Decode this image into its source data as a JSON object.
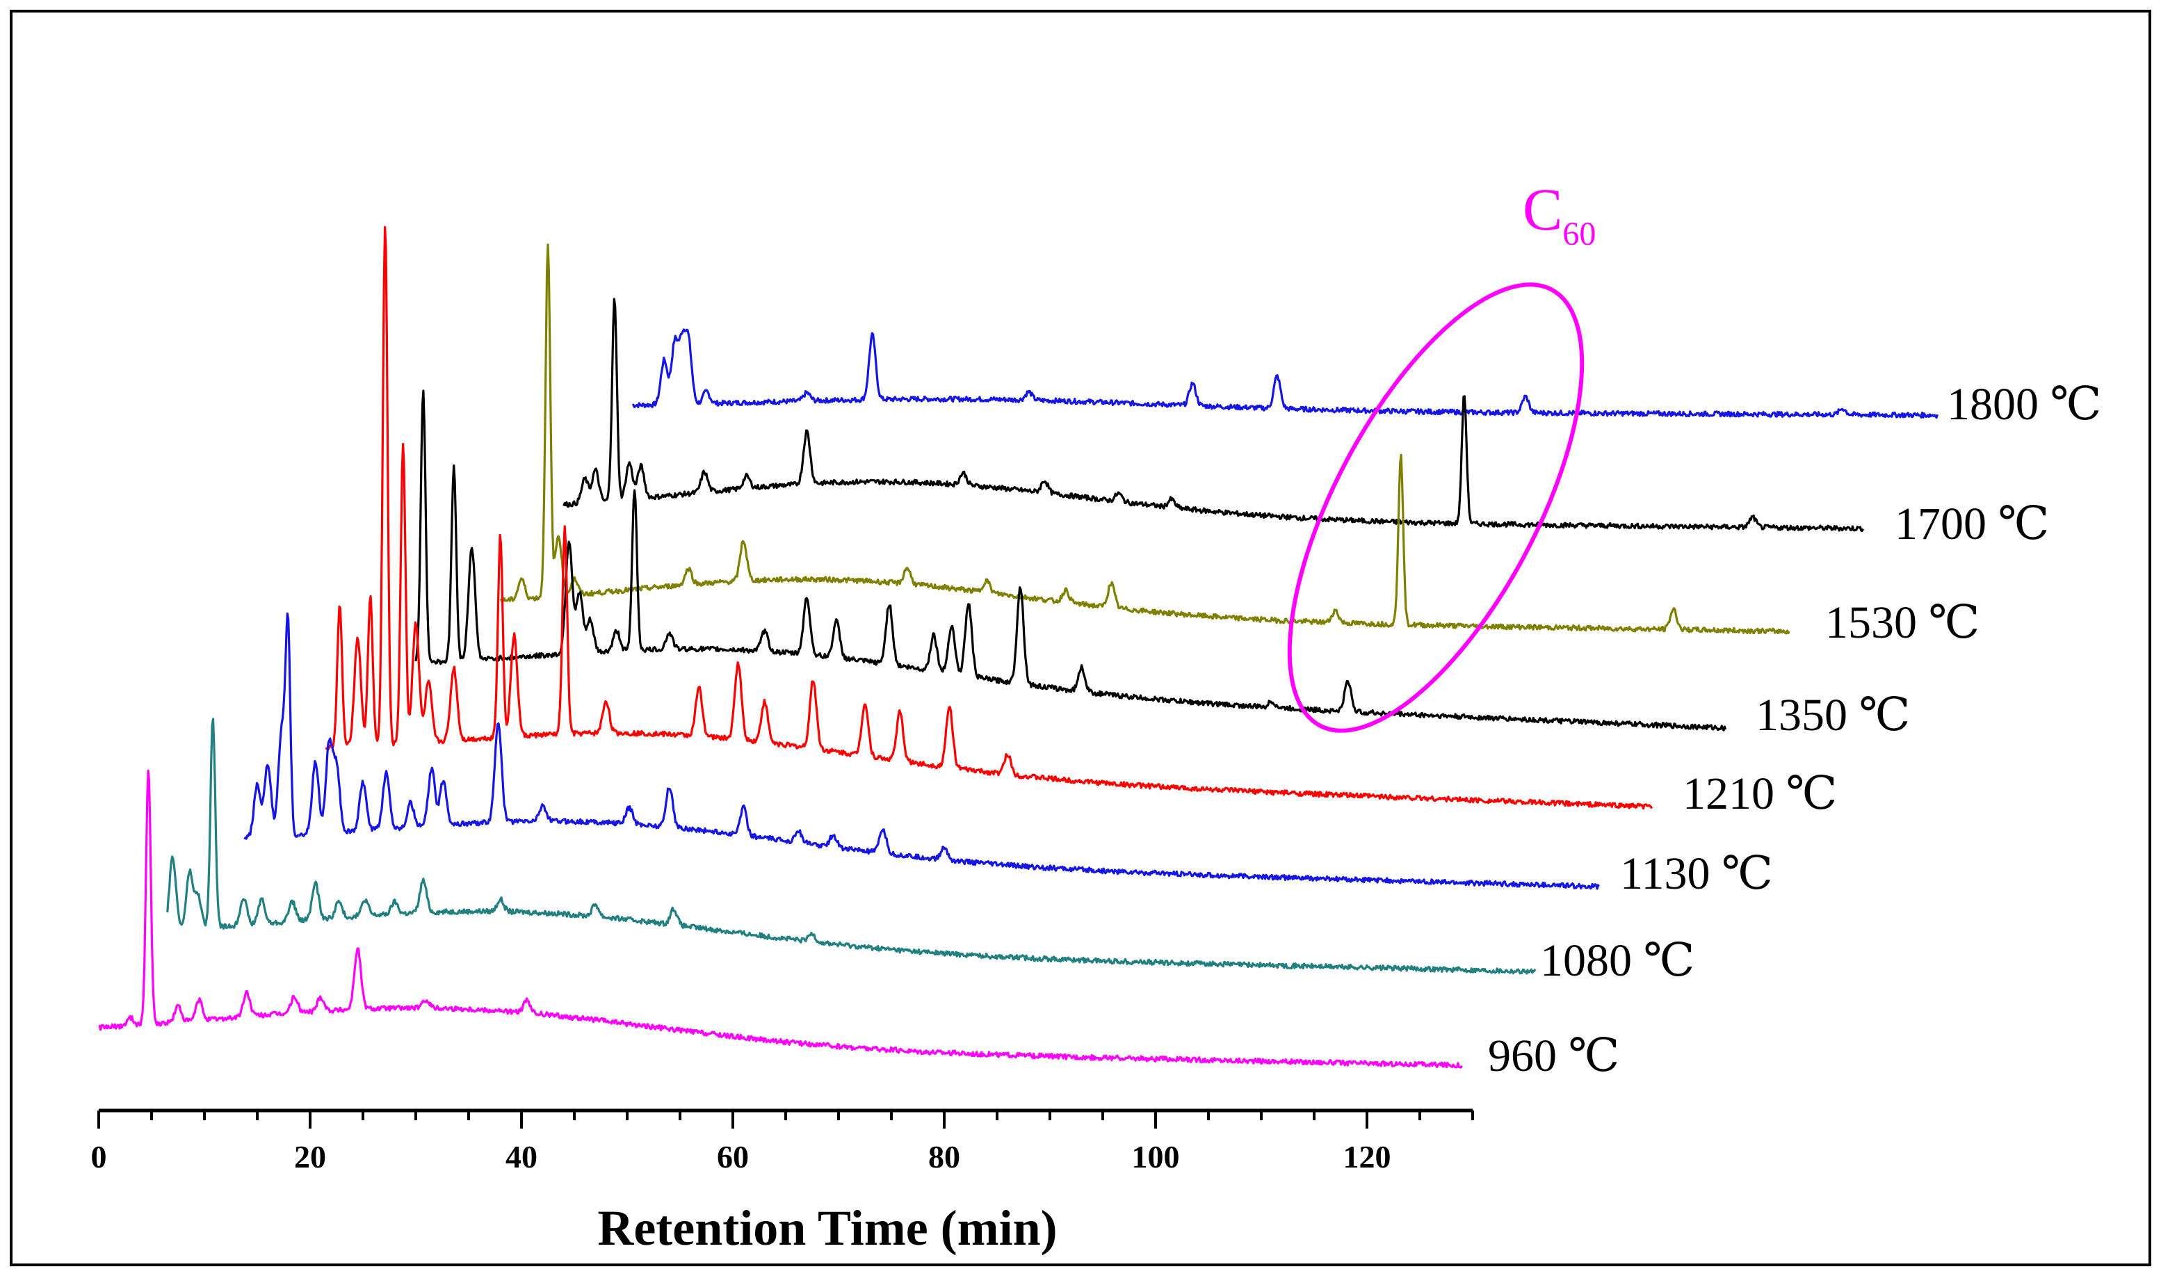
{
  "chart_data": {
    "type": "line",
    "title": "",
    "xlabel": "Retention Time (min)",
    "ylabel": "",
    "xlim": [
      0,
      130
    ],
    "x_ticks": [
      0,
      20,
      40,
      60,
      80,
      100,
      120
    ],
    "grid": false,
    "legend": "right-side inline labels",
    "annotation": {
      "text": "C",
      "subscript": "60",
      "color": "#ff00ff",
      "note": "ellipse encloses C60 peaks"
    },
    "series": [
      {
        "name": "1800 ℃",
        "label": "1800 ℃",
        "color": "#1515e6",
        "x_start": 50.5,
        "x_end": 174,
        "peaks": [
          [
            53.5,
            1.1
          ],
          [
            54.5,
            1.5
          ],
          [
            55.2,
            1.45
          ],
          [
            55.8,
            1.5
          ],
          [
            57.5,
            0.3
          ],
          [
            67,
            0.2
          ],
          [
            73.2,
            1.6
          ],
          [
            88,
            0.2
          ],
          [
            103.5,
            0.55
          ],
          [
            111.5,
            0.8
          ],
          [
            135,
            0.4
          ],
          [
            165,
            0.15
          ]
        ]
      },
      {
        "name": "1700 ℃",
        "label": "1700 ℃",
        "color": "#000000",
        "x_start": 44,
        "x_end": 167,
        "peaks": [
          [
            46,
            0.6
          ],
          [
            47,
            0.8
          ],
          [
            48.8,
            5.0
          ],
          [
            50.2,
            0.9
          ],
          [
            51.3,
            0.8
          ],
          [
            57.3,
            0.5
          ],
          [
            61.3,
            0.3
          ],
          [
            67,
            1.3
          ],
          [
            81.8,
            0.3
          ],
          [
            89.5,
            0.3
          ],
          [
            96.5,
            0.2
          ],
          [
            101.5,
            0.2
          ],
          [
            129.2,
            3.2
          ],
          [
            156.5,
            0.25
          ]
        ]
      },
      {
        "name": "1530 ℃",
        "label": "1530 ℃",
        "color": "#808000",
        "x_start": 38,
        "x_end": 160,
        "peaks": [
          [
            40,
            0.5
          ],
          [
            42.5,
            8.7
          ],
          [
            43.5,
            1.5
          ],
          [
            45,
            0.4
          ],
          [
            55.8,
            0.4
          ],
          [
            61,
            1.0
          ],
          [
            76.5,
            0.4
          ],
          [
            84,
            0.3
          ],
          [
            91.5,
            0.3
          ],
          [
            95.8,
            0.6
          ],
          [
            117,
            0.3
          ],
          [
            123.2,
            4.2
          ],
          [
            149,
            0.5
          ]
        ]
      },
      {
        "name": "1350 ℃",
        "label": "1350 ℃",
        "color": "#000000",
        "x_start": 30,
        "x_end": 154,
        "peaks": [
          [
            30.7,
            6.7
          ],
          [
            33.6,
            4.8
          ],
          [
            35.3,
            2.8
          ],
          [
            44.5,
            2.8
          ],
          [
            45.5,
            1.5
          ],
          [
            46.5,
            0.8
          ],
          [
            49,
            0.5
          ],
          [
            50.7,
            4.0
          ],
          [
            54,
            0.4
          ],
          [
            63,
            0.5
          ],
          [
            67,
            1.4
          ],
          [
            69.8,
            0.9
          ],
          [
            74.8,
            1.5
          ],
          [
            79,
            0.9
          ],
          [
            80.7,
            1.2
          ],
          [
            82.3,
            1.8
          ],
          [
            87.2,
            2.4
          ],
          [
            93,
            0.6
          ],
          [
            111,
            0.15
          ],
          [
            118.2,
            0.75
          ]
        ]
      },
      {
        "name": "1210 ℃",
        "label": "1210 ℃",
        "color": "#ff0000",
        "x_start": 21.5,
        "x_end": 147,
        "peaks": [
          [
            22.8,
            3.5
          ],
          [
            24.5,
            2.7
          ],
          [
            25.7,
            3.7
          ],
          [
            27.1,
            12.9
          ],
          [
            28.8,
            7.4
          ],
          [
            30,
            3.0
          ],
          [
            31.2,
            1.5
          ],
          [
            33.6,
            1.8
          ],
          [
            38,
            5.0
          ],
          [
            39.3,
            2.5
          ],
          [
            44.1,
            5.1
          ],
          [
            48,
            0.8
          ],
          [
            56.8,
            1.2
          ],
          [
            60.5,
            1.9
          ],
          [
            63,
            1.0
          ],
          [
            67.6,
            1.7
          ],
          [
            72.5,
            1.3
          ],
          [
            75.8,
            1.2
          ],
          [
            80.5,
            1.5
          ],
          [
            86,
            0.5
          ]
        ]
      },
      {
        "name": "1130 ℃",
        "label": "1130 ℃",
        "color": "#1515e6",
        "x_start": 13.8,
        "x_end": 142,
        "peaks": [
          [
            15,
            1.3
          ],
          [
            16,
            1.8
          ],
          [
            17.3,
            2.6
          ],
          [
            17.9,
            5.1
          ],
          [
            20.5,
            1.8
          ],
          [
            21.8,
            2.2
          ],
          [
            22.5,
            1.6
          ],
          [
            25,
            1.2
          ],
          [
            27.2,
            1.4
          ],
          [
            29.5,
            0.6
          ],
          [
            31.5,
            1.4
          ],
          [
            32.6,
            1.1
          ],
          [
            37.8,
            2.5
          ],
          [
            42,
            0.4
          ],
          [
            50.2,
            0.4
          ],
          [
            54,
            1.0
          ],
          [
            61,
            0.7
          ],
          [
            66.2,
            0.3
          ],
          [
            69.5,
            0.3
          ],
          [
            74.2,
            0.6
          ],
          [
            80,
            0.3
          ]
        ]
      },
      {
        "name": "1080 ℃",
        "label": "1080 ℃",
        "color": "#228080",
        "x_start": 6.5,
        "x_end": 136,
        "peaks": [
          [
            7,
            1.8
          ],
          [
            8.6,
            1.4
          ],
          [
            9.4,
            0.8
          ],
          [
            10.8,
            5.2
          ],
          [
            13.7,
            0.7
          ],
          [
            15.4,
            0.6
          ],
          [
            18.3,
            0.5
          ],
          [
            20.5,
            0.9
          ],
          [
            22.7,
            0.4
          ],
          [
            25.2,
            0.4
          ],
          [
            28,
            0.3
          ],
          [
            30.7,
            0.8
          ],
          [
            38,
            0.3
          ],
          [
            47,
            0.3
          ],
          [
            54.4,
            0.4
          ],
          [
            67.5,
            0.2
          ]
        ]
      },
      {
        "name": "960 ℃",
        "label": "960 ℃",
        "color": "#ff00ff",
        "x_start": 0,
        "x_end": 129,
        "peaks": [
          [
            3,
            0.2
          ],
          [
            4.7,
            6.3
          ],
          [
            7.5,
            0.4
          ],
          [
            9.5,
            0.5
          ],
          [
            14,
            0.6
          ],
          [
            18.5,
            0.4
          ],
          [
            21,
            0.35
          ],
          [
            24.5,
            1.5
          ],
          [
            31,
            0.2
          ],
          [
            40.5,
            0.3
          ]
        ]
      }
    ]
  }
}
